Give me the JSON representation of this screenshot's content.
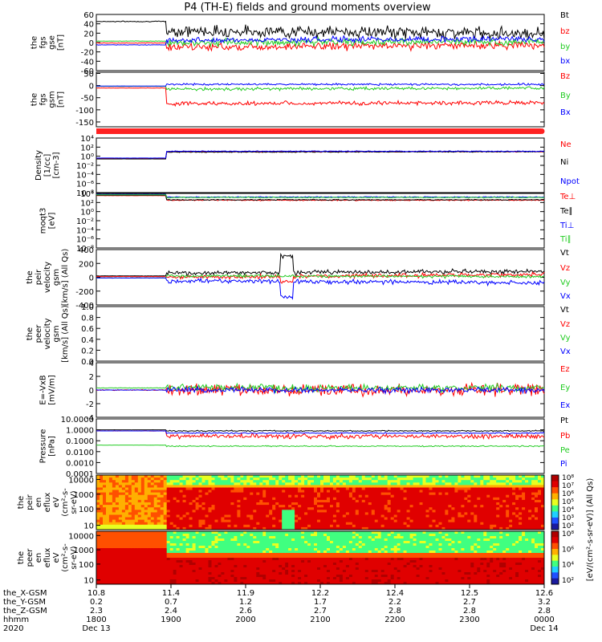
{
  "title": "P4 (TH-E) fields and ground moments overview",
  "colors": {
    "black": "#000000",
    "red": "#ff0000",
    "green": "#22cc22",
    "blue": "#0000ff"
  },
  "chart_data": [
    {
      "type": "line",
      "id": "fgs",
      "ylabel": [
        "the",
        "fgs",
        "gse",
        "[nT]"
      ],
      "ylim": [
        -60,
        60
      ],
      "ticks": [
        "60",
        "40",
        "20",
        "0",
        "-20",
        "-40",
        "-60"
      ],
      "tick_values": [
        60,
        40,
        20,
        0,
        -20,
        -40,
        -60
      ],
      "series": [
        {
          "name": "Bt",
          "color": "black",
          "start": 45,
          "mid": 25,
          "end": 20,
          "noise": 12
        },
        {
          "name": "bz",
          "color": "red",
          "start": -1,
          "mid": -10,
          "end": -5,
          "noise": 8
        },
        {
          "name": "by",
          "color": "green",
          "start": 3,
          "mid": 0,
          "end": 2,
          "noise": 7
        },
        {
          "name": "bx",
          "color": "blue",
          "start": -5,
          "mid": 5,
          "end": 8,
          "noise": 6
        }
      ]
    },
    {
      "type": "line",
      "id": "fgsgsm",
      "ylabel": [
        "the",
        "fgs",
        "gsm",
        "[nT]"
      ],
      "ylim": [
        -170,
        55
      ],
      "ticks": [
        "50",
        "0",
        "-50",
        "-100",
        "-150"
      ],
      "tick_values": [
        50,
        0,
        -50,
        -100,
        -150
      ],
      "series": [
        {
          "name": "Bz",
          "color": "red",
          "start": -10,
          "mid": -75,
          "end": -70,
          "noise": 8
        },
        {
          "name": "By",
          "color": "green",
          "start": -3,
          "mid": -15,
          "end": -10,
          "noise": 6
        },
        {
          "name": "Bx",
          "color": "blue",
          "start": -2,
          "mid": 5,
          "end": 5,
          "noise": 4
        }
      ]
    },
    {
      "type": "line",
      "id": "density",
      "ylabel": [
        "Density",
        "[1/cc]",
        "[cm-3]"
      ],
      "ylim": [
        -8,
        4
      ],
      "ticks": [
        "10⁴",
        "10²",
        "10⁰",
        "10⁻²",
        "10⁻⁴",
        "10⁻⁶",
        "10⁻⁸"
      ],
      "tick_values": [
        4,
        2,
        0,
        -2,
        -4,
        -6,
        -8
      ],
      "series": [
        {
          "name": "Ne",
          "color": "red",
          "start": -0.5,
          "mid": 1,
          "end": 1,
          "noise": 0.1
        },
        {
          "name": "Ni",
          "color": "black",
          "start": -0.6,
          "mid": 0.9,
          "end": 1,
          "noise": 0.1
        },
        {
          "name": "Npot",
          "color": "blue",
          "start": -0.4,
          "mid": 1.1,
          "end": 1.1,
          "noise": 0.1
        }
      ]
    },
    {
      "type": "line",
      "id": "temp",
      "ylabel": [
        "moqt3",
        "[eV]"
      ],
      "ylim": [
        -8,
        4
      ],
      "ticks": [
        "10⁴",
        "10²",
        "10⁰",
        "10⁻²",
        "10⁻⁴",
        "10⁻⁶",
        "10⁻⁸"
      ],
      "tick_values": [
        4,
        2,
        0,
        -2,
        -4,
        -6,
        -8
      ],
      "series": [
        {
          "name": "Te⊥",
          "color": "red",
          "start": 3.5,
          "mid": 2.5,
          "end": 2.5,
          "noise": 0.1
        },
        {
          "name": "Te∥",
          "color": "black",
          "start": 3.6,
          "mid": 2.6,
          "end": 2.6,
          "noise": 0.1
        },
        {
          "name": "Ti⊥",
          "color": "blue",
          "start": 3.8,
          "mid": 3.2,
          "end": 3.2,
          "noise": 0.1
        },
        {
          "name": "Ti∥",
          "color": "green",
          "start": 3.7,
          "mid": 3.1,
          "end": 3.1,
          "noise": 0.1
        }
      ]
    },
    {
      "type": "line",
      "id": "peirvel",
      "ylabel": [
        "the",
        "peir",
        "velocity",
        "gsm",
        "[km/s] (All Qs)"
      ],
      "ylim": [
        -400,
        400
      ],
      "ticks": [
        "400",
        "200",
        "0",
        "-200",
        "-400"
      ],
      "tick_values": [
        400,
        200,
        0,
        -200,
        -400
      ],
      "series": [
        {
          "name": "Vt",
          "color": "black",
          "start": 20,
          "mid": 60,
          "end": 90,
          "noise": 30
        },
        {
          "name": "Vz",
          "color": "red",
          "start": 10,
          "mid": 0,
          "end": 40,
          "noise": 30
        },
        {
          "name": "Vy",
          "color": "green",
          "start": -10,
          "mid": 20,
          "end": 10,
          "noise": 20
        },
        {
          "name": "Vx",
          "color": "blue",
          "start": -10,
          "mid": -50,
          "end": -80,
          "noise": 30
        }
      ]
    },
    {
      "type": "line",
      "id": "peervel",
      "ylabel": [
        "the",
        "peer",
        "velocity",
        "gsm",
        "[km/s] (All Qs)"
      ],
      "ylim": [
        0,
        1
      ],
      "ticks": [
        "1.0",
        "0.8",
        "0.6",
        "0.4",
        "0.2",
        "0.0"
      ],
      "tick_values": [
        1,
        0.8,
        0.6,
        0.4,
        0.2,
        0
      ],
      "series": [
        {
          "name": "Vt",
          "color": "black",
          "empty": true
        },
        {
          "name": "Vz",
          "color": "red",
          "empty": true
        },
        {
          "name": "Vy",
          "color": "green",
          "empty": true
        },
        {
          "name": "Vx",
          "color": "blue",
          "empty": true
        }
      ]
    },
    {
      "type": "line",
      "id": "efield",
      "ylabel": [
        "E=-VxB",
        "[mV/m]"
      ],
      "ylim": [
        -4,
        4
      ],
      "ticks": [
        "4",
        "2",
        "0",
        "-2",
        "-4"
      ],
      "tick_values": [
        4,
        2,
        0,
        -2,
        -4
      ],
      "series": [
        {
          "name": "Ez",
          "color": "red",
          "start": 0,
          "mid": 0,
          "end": 0,
          "noise": 0.9
        },
        {
          "name": "Ey",
          "color": "green",
          "start": 0.3,
          "mid": 0.3,
          "end": 0.3,
          "noise": 0.5
        },
        {
          "name": "Ex",
          "color": "blue",
          "start": 0,
          "mid": 0,
          "end": 0,
          "noise": 0.4
        }
      ]
    },
    {
      "type": "line",
      "id": "pressure",
      "ylabel": [
        "Pressure",
        "[nPa]"
      ],
      "ylim": [
        -4,
        1
      ],
      "ticks": [
        "10.0000",
        "1.0000",
        "0.1000",
        "0.0100",
        "0.0010",
        "0.0001"
      ],
      "tick_values": [
        1,
        0,
        -1,
        -2,
        -3,
        -4
      ],
      "series": [
        {
          "name": "Pt",
          "color": "black",
          "start": 0,
          "mid": -0.1,
          "end": -0.1,
          "noise": 0.05
        },
        {
          "name": "Pb",
          "color": "red",
          "start": -0.1,
          "mid": -0.6,
          "end": -0.6,
          "noise": 0.2
        },
        {
          "name": "Pe",
          "color": "green",
          "start": -1.4,
          "mid": -1.5,
          "end": -1.5,
          "noise": 0.05
        },
        {
          "name": "Pi",
          "color": "blue",
          "start": -0.1,
          "mid": -0.3,
          "end": -0.3,
          "noise": 0.05
        }
      ]
    },
    {
      "type": "heatmap",
      "id": "peirspec",
      "ylabel": [
        "the",
        "peir",
        "en",
        "eflux",
        "eV",
        "(cm²-s-",
        "sr-eV)"
      ],
      "ticks": [
        "10000",
        "1000",
        "100",
        "10"
      ]
    },
    {
      "type": "heatmap",
      "id": "peerspec",
      "ylabel": [
        "the",
        "peer",
        "en",
        "eflux",
        "eV",
        "(cm²-s-",
        "sr-eV)"
      ],
      "ticks": [
        "10000",
        "1000",
        "100",
        "10"
      ]
    }
  ],
  "colorbar": {
    "label": "[eV/(cm²-s-sr-eV)] (All Qs)",
    "ticks": [
      "10⁸",
      "10⁷",
      "10⁶",
      "10⁵",
      "10⁴",
      "10³",
      "10²"
    ]
  },
  "colorbar2_ticks": [
    "10⁸",
    "10⁶",
    "10⁴",
    "10²"
  ],
  "xaxis": {
    "row_labels": [
      "the_X-GSM",
      "the_Y-GSM",
      "the_Z-GSM",
      "hhmm",
      "2020"
    ],
    "columns": [
      {
        "x": "10.8",
        "y": "0.2",
        "z": "2.3",
        "hhmm": "1800",
        "date": "Dec 13"
      },
      {
        "x": "11.4",
        "y": "0.7",
        "z": "2.4",
        "hhmm": "1900",
        "date": ""
      },
      {
        "x": "11.9",
        "y": "1.2",
        "z": "2.6",
        "hhmm": "2000",
        "date": ""
      },
      {
        "x": "12.2",
        "y": "1.7",
        "z": "2.7",
        "hhmm": "2100",
        "date": ""
      },
      {
        "x": "12.4",
        "y": "2.2",
        "z": "2.8",
        "hhmm": "2200",
        "date": ""
      },
      {
        "x": "12.5",
        "y": "2.7",
        "z": "2.8",
        "hhmm": "2300",
        "date": ""
      },
      {
        "x": "12.6",
        "y": "3.2",
        "z": "2.8",
        "hhmm": "0000",
        "date": "Dec 14"
      }
    ]
  }
}
